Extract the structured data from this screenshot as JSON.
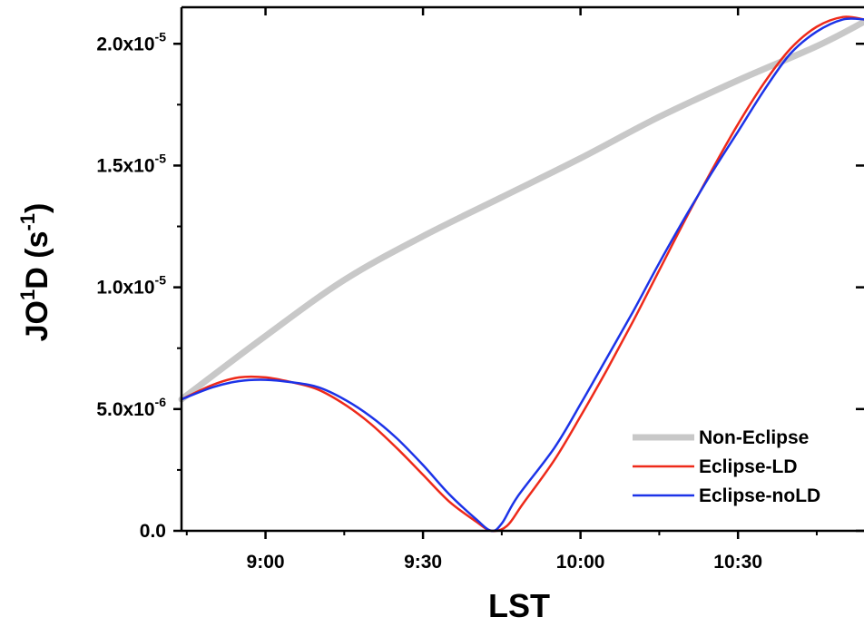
{
  "chart_data": {
    "type": "line",
    "xlabel": "LST",
    "ylabel": {
      "prefix": "JO",
      "sup1": "1",
      "mid": "D (s",
      "sup2": "-1",
      "suffix": ")"
    },
    "x_units": "minutes since midnight (LST)",
    "xlim": [
      "8:44",
      "10:54"
    ],
    "ylim": [
      0,
      2.15e-05
    ],
    "x_ticks": [
      {
        "value": "9:00",
        "label": "9:00"
      },
      {
        "value": "9:30",
        "label": "9:30"
      },
      {
        "value": "10:00",
        "label": "10:00"
      },
      {
        "value": "10:30",
        "label": "10:30"
      }
    ],
    "y_ticks": [
      {
        "value": 0,
        "mantissa": "0.0",
        "exp": ""
      },
      {
        "value": 5e-06,
        "mantissa": "5.0x10",
        "exp": "-6"
      },
      {
        "value": 1e-05,
        "mantissa": "1.0x10",
        "exp": "-5"
      },
      {
        "value": 1.5e-05,
        "mantissa": "1.5x10",
        "exp": "-5"
      },
      {
        "value": 2e-05,
        "mantissa": "2.0x10",
        "exp": "-5"
      }
    ],
    "legend_position": "bottom-right",
    "series": [
      {
        "name": "Non-Eclipse",
        "color": "#c8c8c8",
        "x": [
          "8:44",
          "9:00",
          "9:15",
          "9:30",
          "9:45",
          "10:00",
          "10:15",
          "10:30",
          "10:45",
          "10:54"
        ],
        "y": [
          5.4e-06,
          8e-06,
          1.03e-05,
          1.21e-05,
          1.37e-05,
          1.53e-05,
          1.7e-05,
          1.85e-05,
          1.99e-05,
          2.09e-05
        ]
      },
      {
        "name": "Eclipse-LD",
        "color": "#ee2a1a",
        "x": [
          "8:44",
          "8:50",
          "8:55",
          "9:00",
          "9:05",
          "9:10",
          "9:15",
          "9:20",
          "9:25",
          "9:30",
          "9:35",
          "9:40",
          "9:43",
          "9:46",
          "9:49",
          "9:55",
          "10:00",
          "10:05",
          "10:10",
          "10:15",
          "10:20",
          "10:25",
          "10:30",
          "10:35",
          "10:40",
          "10:45",
          "10:50",
          "10:54"
        ],
        "y": [
          5.4e-06,
          6e-06,
          6.3e-06,
          6.3e-06,
          6.1e-06,
          5.8e-06,
          5.2e-06,
          4.4e-06,
          3.4e-06,
          2.3e-06,
          1.2e-06,
          4e-07,
          0,
          2e-07,
          1.1e-06,
          2.9e-06,
          4.7e-06,
          6.6e-06,
          8.6e-06,
          1.07e-05,
          1.28e-05,
          1.48e-05,
          1.67e-05,
          1.84e-05,
          1.98e-05,
          2.07e-05,
          2.11e-05,
          2.1e-05
        ]
      },
      {
        "name": "Eclipse-noLD",
        "color": "#1c33e8",
        "x": [
          "8:44",
          "8:50",
          "8:55",
          "9:00",
          "9:05",
          "9:10",
          "9:15",
          "9:20",
          "9:25",
          "9:30",
          "9:35",
          "9:40",
          "9:43",
          "9:45",
          "9:48",
          "9:55",
          "10:00",
          "10:05",
          "10:10",
          "10:15",
          "10:20",
          "10:25",
          "10:30",
          "10:35",
          "10:40",
          "10:45",
          "10:50",
          "10:54"
        ],
        "y": [
          5.4e-06,
          5.9e-06,
          6.15e-06,
          6.2e-06,
          6.1e-06,
          5.9e-06,
          5.4e-06,
          4.7e-06,
          3.8e-06,
          2.7e-06,
          1.5e-06,
          5e-07,
          0,
          3e-07,
          1.4e-06,
          3.4e-06,
          5.2e-06,
          7.1e-06,
          9e-06,
          1.1e-05,
          1.29e-05,
          1.47e-05,
          1.64e-05,
          1.81e-05,
          1.96e-05,
          2.05e-05,
          2.1e-05,
          2.1e-05
        ]
      }
    ]
  }
}
